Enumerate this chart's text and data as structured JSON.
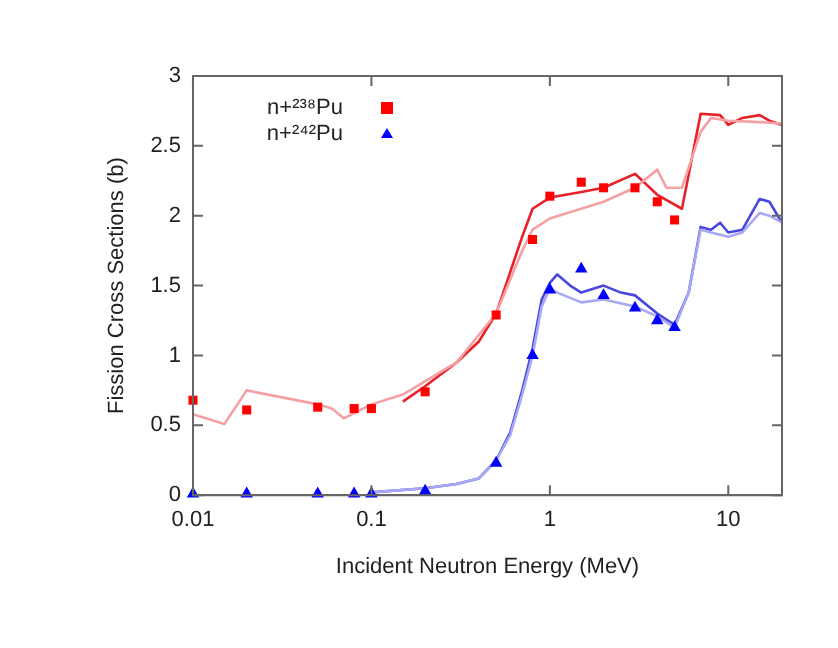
{
  "chart_data": {
    "type": "scatter",
    "xlabel": "Incident Neutron Energy (MeV)",
    "ylabel": "Fission Cross Sections (b)",
    "log": "x",
    "xlim": [
      0.01,
      20
    ],
    "xticks": [
      0.01,
      0.1,
      1,
      10
    ],
    "ylim": [
      0,
      3
    ],
    "yticks": [
      0,
      0.5,
      1,
      1.5,
      2,
      2.5,
      3
    ],
    "grid": false,
    "legend": "top left",
    "series": [
      {
        "type": "line",
        "color": "#f4a0a4",
        "marker": "none",
        "x": [
          0.01,
          0.015,
          0.02,
          0.05,
          0.06,
          0.07,
          0.1,
          0.15,
          0.18,
          0.3,
          0.5,
          0.7,
          0.8,
          1,
          2,
          3,
          4,
          4.5,
          5.5,
          7,
          8,
          10,
          15,
          20
        ],
        "values": [
          0.58,
          0.51,
          0.75,
          0.65,
          0.62,
          0.55,
          0.65,
          0.72,
          0.78,
          0.95,
          1.3,
          1.75,
          1.9,
          1.98,
          2.1,
          2.2,
          2.33,
          2.2,
          2.2,
          2.6,
          2.7,
          2.68,
          2.67,
          2.66
        ]
      },
      {
        "type": "line",
        "color": "#e82028",
        "marker": "none",
        "x": [
          0.15,
          0.2,
          0.3,
          0.4,
          0.5,
          0.7,
          0.8,
          1,
          1.5,
          2,
          3,
          4,
          5.5,
          7,
          9,
          10,
          12,
          15,
          17,
          20
        ],
        "values": [
          0.67,
          0.78,
          0.95,
          1.1,
          1.3,
          1.85,
          2.05,
          2.13,
          2.17,
          2.2,
          2.3,
          2.15,
          2.05,
          2.73,
          2.72,
          2.65,
          2.7,
          2.72,
          2.68,
          2.65
        ]
      },
      {
        "type": "line",
        "color": "#a8a8f4",
        "marker": "none",
        "x": [
          0.1,
          0.2,
          0.3,
          0.4,
          0.5,
          0.6,
          0.7,
          0.8,
          0.9,
          1,
          1.1,
          1.5,
          2,
          3,
          4,
          5,
          6,
          7,
          8,
          10,
          12,
          15,
          17,
          20
        ],
        "values": [
          0.02,
          0.05,
          0.08,
          0.12,
          0.25,
          0.43,
          0.72,
          1.0,
          1.35,
          1.48,
          1.45,
          1.38,
          1.4,
          1.35,
          1.28,
          1.2,
          1.45,
          1.9,
          1.88,
          1.85,
          1.88,
          2.02,
          2.0,
          1.95
        ]
      },
      {
        "type": "line",
        "color": "#4848e0",
        "marker": "none",
        "x": [
          0.1,
          0.2,
          0.3,
          0.4,
          0.5,
          0.6,
          0.7,
          0.8,
          0.9,
          1,
          1.1,
          1.3,
          1.5,
          2,
          2.5,
          3,
          4,
          5,
          6,
          7,
          8,
          9,
          10,
          12,
          15,
          17,
          20
        ],
        "values": [
          0.02,
          0.05,
          0.08,
          0.12,
          0.25,
          0.45,
          0.75,
          1.05,
          1.4,
          1.52,
          1.58,
          1.5,
          1.45,
          1.5,
          1.45,
          1.43,
          1.3,
          1.22,
          1.45,
          1.92,
          1.9,
          1.95,
          1.88,
          1.9,
          2.12,
          2.1,
          1.95
        ]
      },
      {
        "name": "n+²³⁸Pu",
        "color": "#ff0000",
        "marker": "square",
        "x": [
          0.01,
          0.02,
          0.05,
          0.08,
          0.1,
          0.2,
          0.5,
          0.8,
          1,
          1.5,
          2,
          3,
          4,
          5
        ],
        "values": [
          0.68,
          0.61,
          0.63,
          0.62,
          0.62,
          0.74,
          1.29,
          1.83,
          2.14,
          2.24,
          2.2,
          2.2,
          2.1,
          1.97
        ]
      },
      {
        "name": "n+²⁴²Pu",
        "color": "#0000ff",
        "marker": "triangle",
        "x": [
          0.01,
          0.02,
          0.05,
          0.08,
          0.1,
          0.2,
          0.5,
          0.8,
          1,
          1.5,
          2,
          3,
          4,
          5
        ],
        "values": [
          0.01,
          0.01,
          0.01,
          0.01,
          0.01,
          0.03,
          0.23,
          1.0,
          1.47,
          1.62,
          1.43,
          1.34,
          1.25,
          1.2
        ]
      }
    ]
  }
}
